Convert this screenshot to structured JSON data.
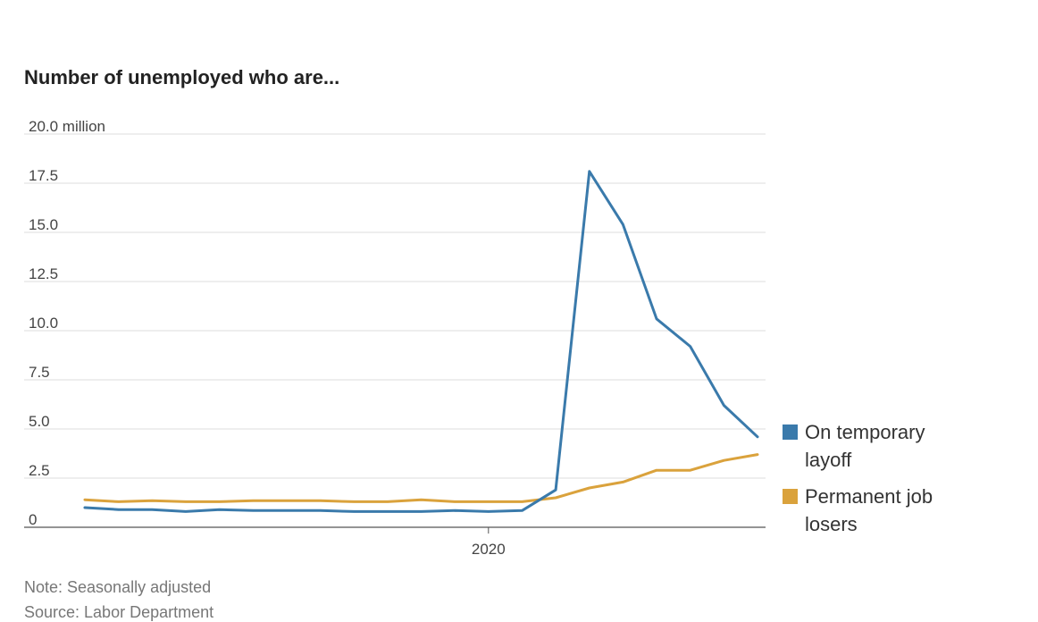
{
  "chart_data": {
    "type": "line",
    "title": "Number of unemployed who are...",
    "y_unit_label": "20.0 million",
    "y_ticks": [
      "0",
      "2.5",
      "5.0",
      "7.5",
      "10.0",
      "12.5",
      "15.0",
      "17.5",
      "20.0 million"
    ],
    "y_tick_values": [
      0,
      2.5,
      5,
      7.5,
      10,
      12.5,
      15,
      17.5,
      20
    ],
    "ylim": [
      0,
      20
    ],
    "x_tick_labels": [
      "2020"
    ],
    "x_tick_positions": [
      12
    ],
    "x": [
      0,
      1,
      2,
      3,
      4,
      5,
      6,
      7,
      8,
      9,
      10,
      11,
      12,
      13,
      14,
      15,
      16,
      17,
      18,
      19,
      20
    ],
    "grid": true,
    "legend_position": "right",
    "series": [
      {
        "name": "On temporary layoff",
        "color": "#3a7aab",
        "values": [
          1.0,
          0.9,
          0.9,
          0.8,
          0.9,
          0.85,
          0.85,
          0.85,
          0.8,
          0.8,
          0.8,
          0.85,
          0.8,
          0.85,
          1.9,
          18.1,
          15.4,
          10.6,
          9.2,
          6.2,
          4.6
        ]
      },
      {
        "name": "Permanent job losers",
        "color": "#daa23c",
        "values": [
          1.4,
          1.3,
          1.35,
          1.3,
          1.3,
          1.35,
          1.35,
          1.35,
          1.3,
          1.3,
          1.4,
          1.3,
          1.3,
          1.3,
          1.5,
          2.0,
          2.3,
          2.9,
          2.9,
          3.4,
          3.7
        ]
      }
    ]
  },
  "legend": {
    "temporary": "On temporary layoff",
    "temporary_line1": "On temporary",
    "temporary_line2": "layoff",
    "permanent": "Permanent job losers",
    "permanent_line1": "Permanent job",
    "permanent_line2": "losers"
  },
  "footer": {
    "note": "Note: Seasonally adjusted",
    "source": "Source: Labor Department"
  }
}
